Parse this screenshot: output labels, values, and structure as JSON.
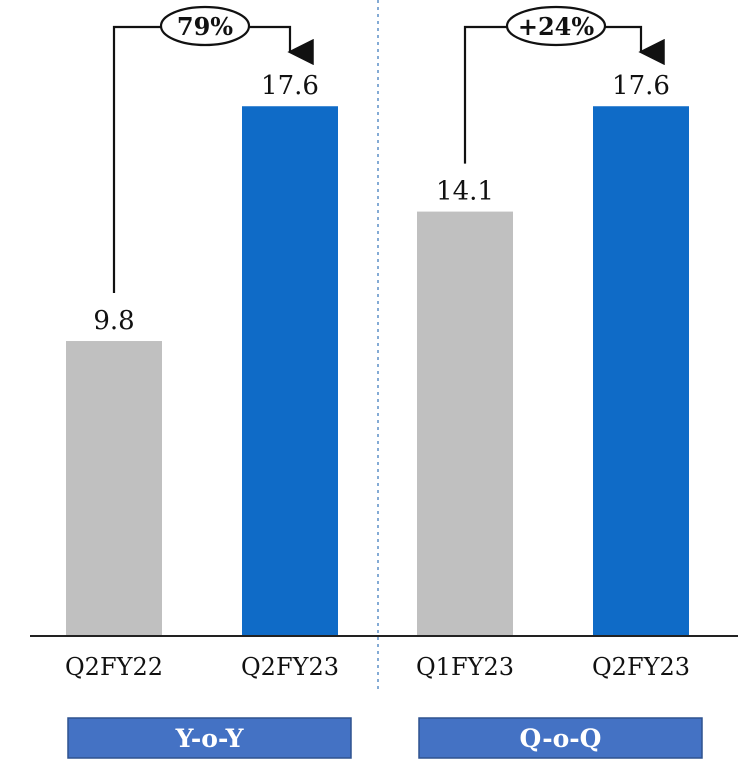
{
  "colors": {
    "prior_bar": "#c0c0c0",
    "current_bar": "#0f6bc7",
    "badge_bg": "#4472c4",
    "axis": "#222222",
    "divider": "#5b8fc7",
    "text": "#111111"
  },
  "chart_data": [
    {
      "type": "bar",
      "categories": [
        "Q2FY22",
        "Q2FY23"
      ],
      "values": [
        9.8,
        17.6
      ],
      "value_labels": [
        "9.8",
        "17.6"
      ],
      "change_label": "79%",
      "group_label": "Y-o-Y",
      "ylim": [
        0,
        20
      ]
    },
    {
      "type": "bar",
      "categories": [
        "Q1FY23",
        "Q2FY23"
      ],
      "values": [
        14.1,
        17.6
      ],
      "value_labels": [
        "14.1",
        "17.6"
      ],
      "change_label": "+24%",
      "group_label": "Q-o-Q",
      "ylim": [
        0,
        20
      ]
    }
  ]
}
